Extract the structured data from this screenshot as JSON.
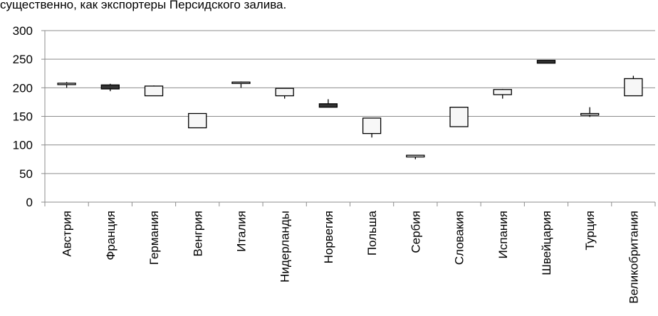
{
  "caption": "существенно, как экспортеры Персидского залива.",
  "chart_data": {
    "type": "candlestick",
    "ylim": [
      0,
      300
    ],
    "yticks": [
      0,
      50,
      100,
      150,
      200,
      250,
      300
    ],
    "grid": true,
    "categories": [
      "Австрия",
      "Франция",
      "Германия",
      "Венгрия",
      "Италия",
      "Нидерланды",
      "Норвегия",
      "Польша",
      "Сербия",
      "Словакия",
      "Испания",
      "Швейцария",
      "Турция",
      "Великобритания"
    ],
    "series": [
      {
        "open": [
          206,
          205,
          186,
          130,
          208,
          186,
          172,
          120,
          79,
          132,
          188,
          248,
          152,
          186
        ],
        "close": [
          208,
          198,
          203,
          155,
          210,
          199,
          166,
          147,
          82,
          166,
          197,
          243,
          155,
          216
        ],
        "high": [
          210,
          207,
          204,
          155,
          211,
          199,
          180,
          147,
          82,
          166,
          198,
          248,
          166,
          221
        ],
        "low": [
          200,
          194,
          186,
          130,
          200,
          181,
          166,
          113,
          75,
          132,
          181,
          243,
          149,
          186
        ],
        "bearish_color": "#333333",
        "bullish_color": "#f7f7f7"
      }
    ]
  }
}
